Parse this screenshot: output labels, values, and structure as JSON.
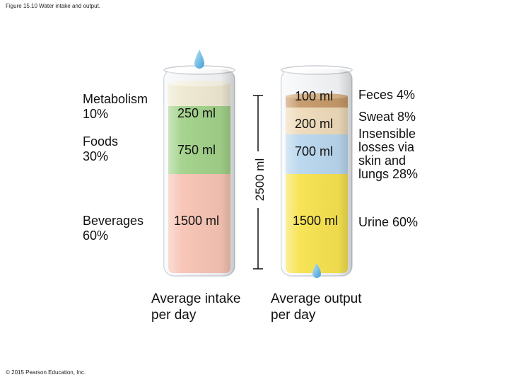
{
  "figure": {
    "caption": "Figure 15.10 Water intake and output.",
    "copyright": "© 2015 Pearson Education, Inc."
  },
  "intake": {
    "title_line1": "Average intake",
    "title_line2": "per day",
    "segments": [
      {
        "name_line1": "Metabolism",
        "name_line2": "10%",
        "volume": "250 ml",
        "percent": 10,
        "color": "#efe9d2"
      },
      {
        "name_line1": "Foods",
        "name_line2": "30%",
        "volume": "750 ml",
        "percent": 30,
        "color": "#a2d28a"
      },
      {
        "name_line1": "Beverages",
        "name_line2": "60%",
        "volume": "1500 ml",
        "percent": 60,
        "color": "#f7c4b4"
      }
    ]
  },
  "total": {
    "label": "2500 ml"
  },
  "output": {
    "title_line1": "Average output",
    "title_line2": "per day",
    "segments": [
      {
        "label": "Feces 4%",
        "volume": "100 ml",
        "percent": 4,
        "color": "#c69a6a"
      },
      {
        "label": "Sweat 8%",
        "volume": "200 ml",
        "percent": 8,
        "color": "#efdbbb"
      },
      {
        "label_lines": [
          "Insensible",
          "losses via",
          "skin and",
          "lungs 28%"
        ],
        "volume": "700 ml",
        "percent": 28,
        "color": "#b9d7ee"
      },
      {
        "label": "Urine 60%",
        "volume": "1500 ml",
        "percent": 60,
        "color": "#f7e34f"
      }
    ]
  }
}
